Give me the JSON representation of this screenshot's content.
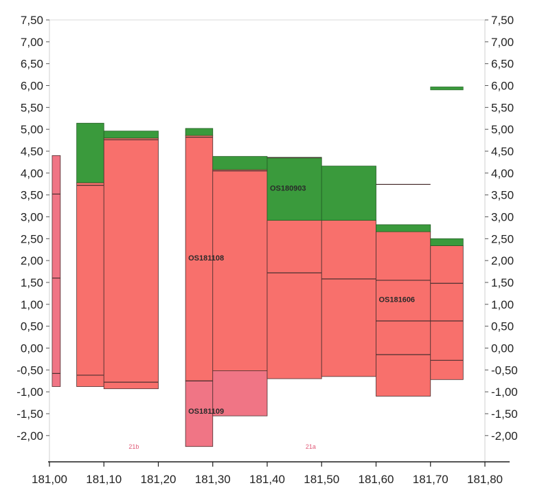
{
  "chart_data": {
    "type": "area",
    "title": "",
    "xlabel": "",
    "ylabel": "",
    "xlim": [
      181.0,
      181.8
    ],
    "ylim": [
      -2.6,
      7.5
    ],
    "grid": false,
    "x_ticks": [
      181.0,
      181.1,
      181.2,
      181.3,
      181.4,
      181.5,
      181.6,
      181.7,
      181.8
    ],
    "x_tick_labels": [
      "181,00",
      "181,10",
      "181,20",
      "181,30",
      "181,40",
      "181,50",
      "181,60",
      "181,70",
      "181,80"
    ],
    "y_ticks": [
      7.5,
      7.0,
      6.5,
      6.0,
      5.5,
      5.0,
      4.5,
      4.0,
      3.5,
      3.0,
      2.5,
      2.0,
      1.5,
      1.0,
      0.5,
      0.0,
      -0.5,
      -1.0,
      -1.5,
      -2.0
    ],
    "y_tick_labels": [
      "7,50",
      "7,00",
      "6,50",
      "6,00",
      "5,50",
      "5,00",
      "4,50",
      "4,00",
      "3,50",
      "3,00",
      "2,50",
      "2,00",
      "1,50",
      "1,00",
      "0,50",
      "0,00",
      "-0,50",
      "-1,00",
      "-1,50",
      "-2,00"
    ],
    "colors": {
      "layer_red": "#f8706c",
      "layer_red_dark": "#ef6466",
      "layer_pink": "#f07585",
      "layer_green": "#3a9a3c",
      "edge": "#4a3030",
      "section_label": "#e05a78"
    },
    "segments": [
      {
        "x0": 181.005,
        "x1": 181.02,
        "red": [
          -0.88,
          4.4
        ],
        "pink": true,
        "lines": [
          3.52,
          1.6,
          -0.58
        ]
      },
      {
        "x0": 181.05,
        "x1": 181.1,
        "red": [
          -0.88,
          3.78
        ],
        "green": [
          3.78,
          5.14
        ],
        "lines": [
          3.72,
          -0.62
        ]
      },
      {
        "x0": 181.1,
        "x1": 181.2,
        "red": [
          -0.93,
          4.8
        ],
        "green": [
          4.8,
          4.96
        ],
        "lines": [
          4.76,
          -0.78
        ]
      },
      {
        "x0": 181.25,
        "x1": 181.3,
        "red": [
          -0.75,
          4.86
        ],
        "pink_below": [
          -2.25,
          -0.75
        ],
        "green": [
          4.86,
          5.02
        ],
        "lines": [
          4.82,
          -0.75
        ]
      },
      {
        "x0": 181.3,
        "x1": 181.4,
        "red": [
          -0.52,
          4.08
        ],
        "pink_below": [
          -1.55,
          -0.52
        ],
        "green": [
          4.08,
          4.38
        ],
        "lines": [
          4.05
        ]
      },
      {
        "x0": 181.4,
        "x1": 181.5,
        "red": [
          -0.7,
          2.92
        ],
        "green": [
          2.92,
          4.36
        ],
        "lines": [
          1.72,
          4.35
        ]
      },
      {
        "x0": 181.5,
        "x1": 181.6,
        "red": [
          -0.65,
          2.92
        ],
        "green": [
          2.92,
          4.16
        ],
        "lines": [
          1.58
        ]
      },
      {
        "x0": 181.6,
        "x1": 181.7,
        "red": [
          -1.1,
          2.66
        ],
        "green": [
          2.66,
          2.82
        ],
        "lines": [
          1.55,
          0.62,
          -0.15,
          3.74
        ]
      },
      {
        "x0": 181.7,
        "x1": 181.76,
        "red": [
          -0.72,
          2.34
        ],
        "green": [
          2.34,
          2.5
        ],
        "lines": [
          1.48,
          0.62,
          -0.28
        ]
      }
    ],
    "floating_green": {
      "x0": 181.7,
      "x1": 181.76,
      "y0": 5.9,
      "y1": 5.97
    },
    "annotations": [
      {
        "text": "OS180903",
        "x": 181.405,
        "y": 3.6
      },
      {
        "text": "OS181108",
        "x": 181.255,
        "y": 2.0
      },
      {
        "text": "OS181606",
        "x": 181.605,
        "y": 1.05
      },
      {
        "text": "OS181109",
        "x": 181.255,
        "y": -1.5
      }
    ],
    "section_labels": [
      {
        "text": "21b",
        "x": 181.155,
        "y": -2.3
      },
      {
        "text": "21a",
        "x": 181.48,
        "y": -2.3
      }
    ]
  }
}
